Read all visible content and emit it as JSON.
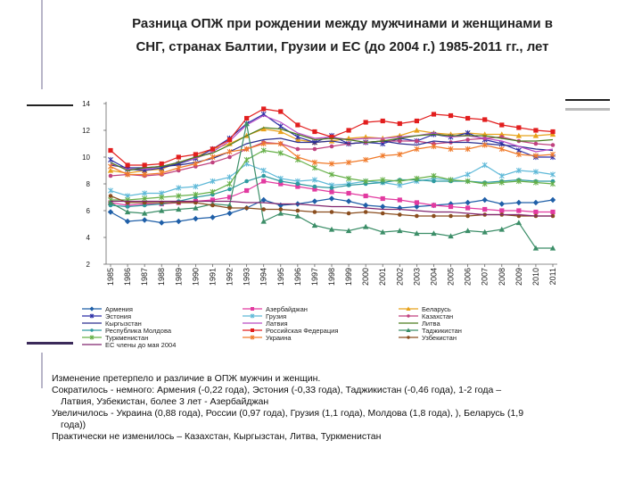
{
  "title": {
    "line1": "Разница ОПЖ при рождении между мужчинами и женщинами в",
    "line2": "СНГ, странах Балтии, Грузии и ЕС (до 2004 г.) 1985-2011 гг., лет"
  },
  "chart_data": {
    "type": "line",
    "title": "Разница ОПЖ при рождении между мужчинами и женщинами в СНГ, странах Балтии, Грузии и ЕС (до 2004 г.) 1985-2011 гг., лет",
    "ylim": [
      2,
      14
    ],
    "yticks": [
      "2",
      "4",
      "6",
      "8",
      "10",
      "12",
      "14"
    ],
    "x": [
      "1985",
      "1986",
      "1987",
      "1988",
      "1989",
      "1990",
      "1991",
      "1992",
      "1993",
      "1994",
      "1995",
      "1996",
      "1997",
      "1998",
      "1999",
      "2000",
      "2001",
      "2002",
      "2003",
      "2004",
      "2005",
      "2006",
      "2007",
      "2008",
      "2009",
      "2010",
      "2011"
    ],
    "series": [
      {
        "name": "Армения",
        "color": "#1f5fa8",
        "marker": "diamond",
        "values": [
          5.9,
          5.2,
          5.3,
          5.1,
          5.2,
          5.4,
          5.5,
          5.8,
          6.2,
          6.8,
          6.4,
          6.5,
          6.7,
          6.9,
          6.7,
          6.4,
          6.3,
          6.2,
          6.3,
          6.4,
          6.5,
          6.6,
          6.8,
          6.5,
          6.6,
          6.6,
          6.8
        ]
      },
      {
        "name": "Азербайджан",
        "color": "#e23aa0",
        "marker": "square",
        "values": [
          6.6,
          6.4,
          6.5,
          6.5,
          6.6,
          6.7,
          6.8,
          7.0,
          7.5,
          8.2,
          8.0,
          7.8,
          7.6,
          7.4,
          7.3,
          7.1,
          6.9,
          6.8,
          6.6,
          6.4,
          6.3,
          6.2,
          6.1,
          6.0,
          6.0,
          5.9,
          5.9
        ]
      },
      {
        "name": "Беларусь",
        "color": "#e8a21c",
        "marker": "triangle",
        "values": [
          9.0,
          8.8,
          9.0,
          9.1,
          9.6,
          10.0,
          10.6,
          11.0,
          11.6,
          12.1,
          11.9,
          11.3,
          11.1,
          11.2,
          11.4,
          11.5,
          11.4,
          11.6,
          12.0,
          11.8,
          11.7,
          11.8,
          11.7,
          11.7,
          11.6,
          11.6,
          11.7
        ]
      },
      {
        "name": "Эстония",
        "color": "#2c2fa6",
        "marker": "star",
        "values": [
          9.8,
          9.1,
          9.0,
          9.2,
          9.5,
          9.9,
          10.6,
          11.4,
          12.5,
          13.2,
          12.3,
          11.5,
          11.1,
          11.6,
          11.0,
          11.1,
          11.0,
          11.4,
          11.2,
          11.7,
          11.5,
          11.8,
          11.3,
          11.0,
          10.5,
          10.0,
          10.0
        ]
      },
      {
        "name": "Грузия",
        "color": "#5fb9d8",
        "marker": "star",
        "values": [
          7.5,
          7.1,
          7.3,
          7.3,
          7.7,
          7.8,
          8.2,
          8.5,
          9.5,
          9.0,
          8.4,
          8.2,
          8.3,
          7.9,
          8.0,
          8.2,
          8.1,
          7.9,
          8.2,
          8.4,
          8.3,
          8.7,
          9.4,
          8.6,
          9.0,
          8.9,
          8.7
        ]
      },
      {
        "name": "Казахстан",
        "color": "#c0427f",
        "marker": "circle",
        "values": [
          8.6,
          8.7,
          8.6,
          8.7,
          9.0,
          9.3,
          9.6,
          10.0,
          10.6,
          11.1,
          11.0,
          10.6,
          10.6,
          10.8,
          11.0,
          11.1,
          11.2,
          11.2,
          11.2,
          11.0,
          11.1,
          11.3,
          11.4,
          11.5,
          11.2,
          11.0,
          10.9
        ]
      },
      {
        "name": "Кыргызстан",
        "color": "#2a2e8f",
        "marker": "none",
        "values": [
          9.4,
          9.2,
          9.2,
          9.3,
          9.4,
          9.6,
          9.9,
          10.4,
          11.0,
          11.3,
          11.4,
          11.1,
          11.1,
          11.2,
          11.0,
          11.1,
          11.2,
          11.0,
          10.9,
          11.2,
          11.1,
          11.1,
          11.0,
          10.9,
          10.8,
          10.6,
          10.5
        ]
      },
      {
        "name": "Латвия",
        "color": "#b84bc4",
        "marker": "none",
        "values": [
          9.5,
          9.1,
          9.1,
          9.3,
          9.6,
          9.9,
          10.4,
          11.2,
          12.4,
          13.1,
          12.6,
          11.8,
          11.4,
          11.5,
          11.3,
          11.4,
          11.4,
          11.5,
          11.6,
          11.8,
          11.5,
          11.6,
          11.4,
          11.2,
          10.8,
          10.4,
          10.6
        ]
      },
      {
        "name": "Республика Молдова",
        "color": "#2e9aa0",
        "marker": "circle",
        "values": [
          6.4,
          6.3,
          6.4,
          6.5,
          6.7,
          7.0,
          7.2,
          7.6,
          8.2,
          8.6,
          8.2,
          8.0,
          7.8,
          7.7,
          7.9,
          8.0,
          8.1,
          8.3,
          8.3,
          8.2,
          8.2,
          8.2,
          8.1,
          8.2,
          8.3,
          8.2,
          8.2
        ]
      },
      {
        "name": "Российская Федерация",
        "color": "#e21e1e",
        "marker": "square",
        "values": [
          10.5,
          9.4,
          9.4,
          9.5,
          10.0,
          10.2,
          10.6,
          11.3,
          12.9,
          13.6,
          13.4,
          12.4,
          11.9,
          11.5,
          12.0,
          12.6,
          12.7,
          12.5,
          12.7,
          13.2,
          13.1,
          12.9,
          12.8,
          12.4,
          12.2,
          12.0,
          11.9
        ]
      },
      {
        "name": "Литва",
        "color": "#4a7c1e",
        "marker": "none",
        "values": [
          9.6,
          9.0,
          9.2,
          9.3,
          9.6,
          10.0,
          10.3,
          10.9,
          11.6,
          12.2,
          12.1,
          11.7,
          11.3,
          11.4,
          11.3,
          11.1,
          11.2,
          11.4,
          11.6,
          11.7,
          11.6,
          11.6,
          11.6,
          11.4,
          11.2,
          11.2,
          11.3
        ]
      },
      {
        "name": "Туркменистан",
        "color": "#66b048",
        "marker": "star",
        "values": [
          6.8,
          6.8,
          6.9,
          7.0,
          7.1,
          7.2,
          7.4,
          8.0,
          9.8,
          10.5,
          10.3,
          9.8,
          9.2,
          8.7,
          8.4,
          8.2,
          8.3,
          8.2,
          8.4,
          8.6,
          8.3,
          8.2,
          8.0,
          8.1,
          8.2,
          8.1,
          8.0
        ]
      },
      {
        "name": "Таджикистан",
        "color": "#3c8e68",
        "marker": "triangle",
        "values": [
          6.6,
          5.9,
          5.8,
          6.0,
          6.1,
          6.2,
          6.5,
          6.4,
          12.5,
          5.2,
          5.8,
          5.6,
          4.9,
          4.6,
          4.5,
          4.8,
          4.4,
          4.5,
          4.3,
          4.3,
          4.1,
          4.5,
          4.4,
          4.6,
          5.1,
          3.2,
          3.2
        ]
      },
      {
        "name": "Украина",
        "color": "#f07a2a",
        "marker": "star",
        "values": [
          9.3,
          8.7,
          8.7,
          8.8,
          9.2,
          9.5,
          10.0,
          10.4,
          10.6,
          11.0,
          11.0,
          10.0,
          9.6,
          9.5,
          9.6,
          9.8,
          10.1,
          10.2,
          10.6,
          10.8,
          10.6,
          10.6,
          10.9,
          10.6,
          10.2,
          10.1,
          10.2
        ]
      },
      {
        "name": "Узбекистан",
        "color": "#8a4d1e",
        "marker": "circle",
        "values": [
          7.1,
          6.6,
          6.6,
          6.6,
          6.6,
          6.6,
          6.4,
          6.2,
          6.2,
          6.1,
          6.1,
          6.0,
          5.9,
          5.9,
          5.8,
          5.9,
          5.8,
          5.7,
          5.6,
          5.6,
          5.6,
          5.6,
          5.7,
          5.7,
          5.6,
          5.6,
          5.6
        ]
      },
      {
        "name": "ЕС члены до мая 2004",
        "color": "#80246e",
        "marker": "none",
        "values": [
          6.7,
          6.7,
          6.7,
          6.7,
          6.7,
          6.7,
          6.7,
          6.7,
          6.6,
          6.6,
          6.5,
          6.5,
          6.4,
          6.3,
          6.3,
          6.2,
          6.1,
          6.1,
          6.0,
          5.9,
          5.9,
          5.8,
          5.7,
          5.7,
          5.7,
          5.6,
          5.6
        ]
      }
    ],
    "legend": [
      [
        "Армения",
        "Азербайджан",
        "Беларусь"
      ],
      [
        "Эстония",
        "Грузия",
        "Казахстан"
      ],
      [
        "Кыргызстан",
        "Латвия",
        "Литва"
      ],
      [
        "Республика Молдова",
        "Российская Федерация",
        "Таджикистан"
      ],
      [
        "Туркменистан",
        "Украина",
        "Узбекистан"
      ],
      [
        "ЕС члены до мая 2004"
      ]
    ]
  },
  "notes": [
    "Изменение претерпело и различие в ОПЖ мужчин и  женщин.",
    "Сократилось -  немного: Армения (-0,22 года), Эстония (-0,33 года), Таджикистан (-0,46 года), 1-2 года –",
    "Латвия, Узбекистан, более 3 лет - Азербайджан",
    "Увеличилось -  Украина (0,88 года), России (0,97 года), Грузия (1,1 года), Молдова (1,8 года), ), Беларусь (1,9",
    "года))",
    "Практически не изменилось – Казахстан, Кыргызстан, Литва, Туркменистан"
  ]
}
